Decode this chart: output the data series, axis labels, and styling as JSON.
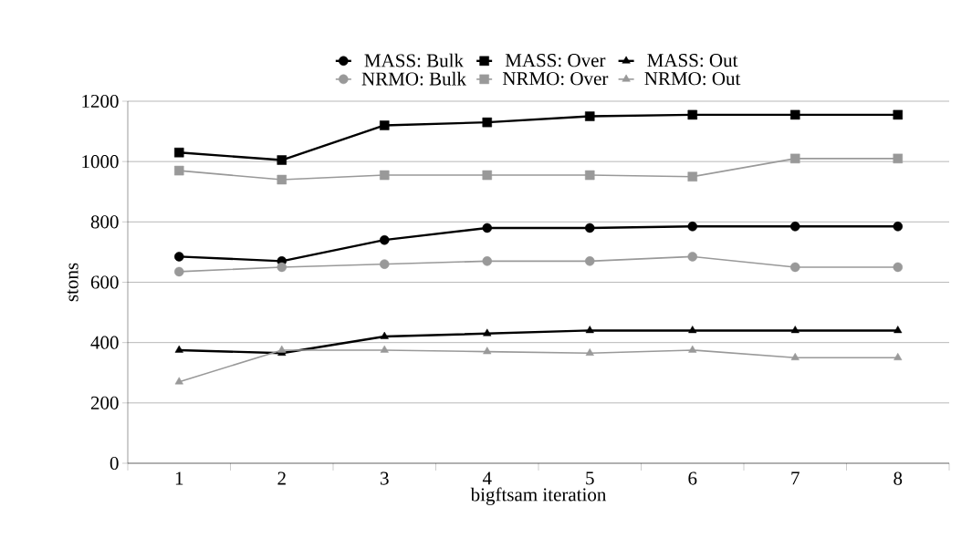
{
  "chart_data": {
    "type": "line",
    "xlabel": "bigftsam iteration",
    "ylabel": "stons",
    "categories": [
      "1",
      "2",
      "3",
      "4",
      "5",
      "6",
      "7",
      "8"
    ],
    "series": [
      {
        "name": "MASS: Bulk",
        "color": "#000000",
        "marker": "circle",
        "values": [
          685,
          670,
          740,
          780,
          780,
          785,
          785,
          785
        ]
      },
      {
        "name": "MASS: Over",
        "color": "#000000",
        "marker": "square",
        "values": [
          1030,
          1005,
          1120,
          1130,
          1150,
          1155,
          1155,
          1155
        ]
      },
      {
        "name": "MASS: Out",
        "color": "#000000",
        "marker": "triangle",
        "values": [
          375,
          365,
          420,
          430,
          440,
          440,
          440,
          440
        ]
      },
      {
        "name": "NRMO: Bulk",
        "color": "#999999",
        "marker": "circle",
        "values": [
          635,
          650,
          660,
          670,
          670,
          685,
          650,
          650
        ]
      },
      {
        "name": "NRMO: Over",
        "color": "#999999",
        "marker": "square",
        "values": [
          970,
          940,
          955,
          955,
          955,
          950,
          1010,
          1010
        ]
      },
      {
        "name": "NRMO: Out",
        "color": "#999999",
        "marker": "triangle",
        "values": [
          270,
          375,
          375,
          370,
          365,
          375,
          350,
          350
        ]
      }
    ],
    "ylim": [
      0,
      1200
    ],
    "yticks": [
      0,
      200,
      400,
      600,
      800,
      1000,
      1200
    ],
    "grid": "y",
    "legend": "top",
    "line_style": "solid"
  }
}
